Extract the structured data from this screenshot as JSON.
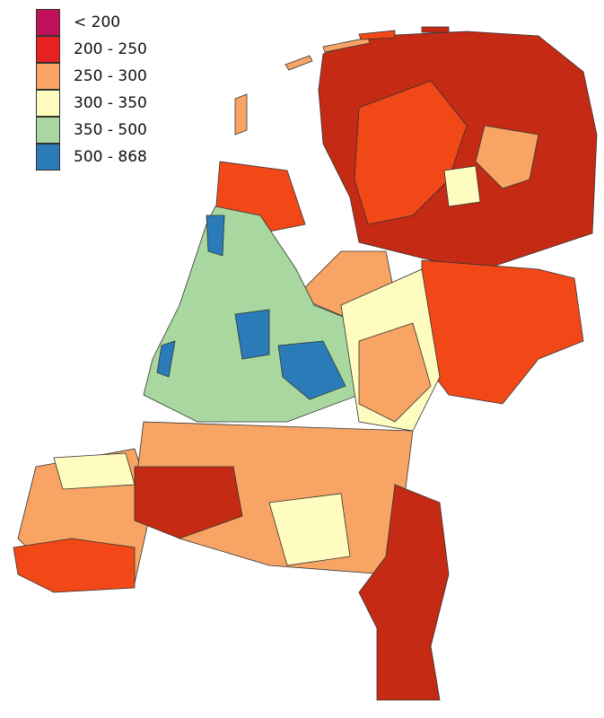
{
  "legend": {
    "classes": [
      {
        "label": "< 200",
        "color": "#c0105a"
      },
      {
        "label": "200 - 250",
        "color": "#e8201e"
      },
      {
        "label": "250 - 300",
        "color": "#f7a464"
      },
      {
        "label": "300 - 350",
        "color": "#fefcbf"
      },
      {
        "label": "350 - 500",
        "color": "#a8d8a0"
      },
      {
        "label": "500 - 868",
        "color": "#2b7bb9"
      }
    ]
  },
  "map_colors": {
    "dark_red": "#c42a14",
    "orange_red": "#f24818"
  }
}
